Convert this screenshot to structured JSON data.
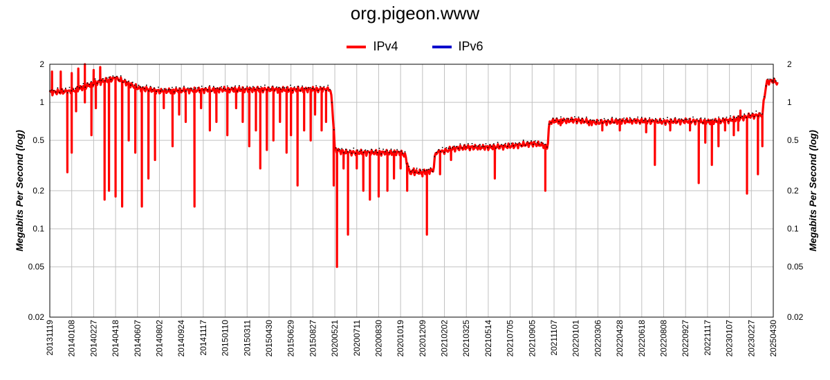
{
  "colors": {
    "ipv4": "#ff0000",
    "ipv6": "#0000cc",
    "grid": "#c0c0c0",
    "dots": "#000000"
  },
  "chart_data": {
    "type": "line",
    "title": "org.pigeon.www",
    "ylabel": "Megabits Per Second (log)",
    "yscale": "log",
    "ylim": [
      0.02,
      2
    ],
    "grid": true,
    "legend_position": "top-center",
    "yticks": [
      "2",
      "1",
      "0.5",
      "0.2",
      "0.1",
      "0.05",
      "0.02"
    ],
    "xtick_labels": [
      "20131119",
      "20140108",
      "20140227",
      "20140418",
      "20140607",
      "20140802",
      "20140924",
      "20141117",
      "20150110",
      "20150311",
      "20150430",
      "20150629",
      "20150827",
      "20200521",
      "20200711",
      "20200830",
      "20201019",
      "20201209",
      "20210202",
      "20210325",
      "20210514",
      "20210705",
      "20210905",
      "20211107",
      "20220101",
      "20220306",
      "20220428",
      "20220618",
      "20220808",
      "20220927",
      "20221117",
      "20230107",
      "20230227",
      "20250430"
    ],
    "series": [
      {
        "name": "IPv4",
        "color": "#ff0000",
        "base": [
          [
            0,
            1.2
          ],
          [
            1,
            1.22
          ],
          [
            2,
            1.4
          ],
          [
            3,
            1.55
          ],
          [
            4,
            1.3
          ],
          [
            5,
            1.22
          ],
          [
            6,
            1.24
          ],
          [
            7,
            1.25
          ],
          [
            8,
            1.26
          ],
          [
            9,
            1.26
          ],
          [
            10,
            1.26
          ],
          [
            11,
            1.26
          ],
          [
            12,
            1.26
          ],
          [
            12.8,
            1.26
          ],
          [
            13,
            0.42
          ],
          [
            13.5,
            0.4
          ],
          [
            14,
            0.4
          ],
          [
            15,
            0.4
          ],
          [
            16,
            0.4
          ],
          [
            16.2,
            0.38
          ],
          [
            16.4,
            0.28
          ],
          [
            17,
            0.28
          ],
          [
            17.5,
            0.29
          ],
          [
            17.6,
            0.4
          ],
          [
            18,
            0.41
          ],
          [
            18.4,
            0.43
          ],
          [
            19,
            0.44
          ],
          [
            20,
            0.44
          ],
          [
            21,
            0.45
          ],
          [
            22,
            0.47
          ],
          [
            22.5,
            0.46
          ],
          [
            22.7,
            0.44
          ],
          [
            22.8,
            0.7
          ],
          [
            23,
            0.71
          ],
          [
            24,
            0.72
          ],
          [
            25,
            0.69
          ],
          [
            26,
            0.71
          ],
          [
            27,
            0.71
          ],
          [
            28,
            0.7
          ],
          [
            29,
            0.71
          ],
          [
            30,
            0.7
          ],
          [
            31,
            0.72
          ],
          [
            31.5,
            0.75
          ],
          [
            32,
            0.78
          ],
          [
            32.5,
            0.79
          ],
          [
            32.7,
            1.45
          ],
          [
            33,
            1.48
          ],
          [
            33.2,
            1.42
          ]
        ],
        "dips": [
          [
            0.8,
            0.28
          ],
          [
            1.0,
            0.4
          ],
          [
            1.2,
            0.85
          ],
          [
            1.6,
            1.0
          ],
          [
            1.9,
            0.55
          ],
          [
            2.1,
            0.9
          ],
          [
            2.5,
            0.17
          ],
          [
            2.7,
            0.2
          ],
          [
            3.0,
            0.18
          ],
          [
            3.3,
            0.15
          ],
          [
            3.6,
            0.5
          ],
          [
            3.9,
            0.4
          ],
          [
            4.2,
            0.15
          ],
          [
            4.5,
            0.25
          ],
          [
            4.8,
            0.35
          ],
          [
            5.2,
            0.9
          ],
          [
            5.6,
            0.45
          ],
          [
            5.9,
            0.8
          ],
          [
            6.2,
            0.7
          ],
          [
            6.6,
            0.15
          ],
          [
            6.9,
            0.9
          ],
          [
            7.3,
            0.6
          ],
          [
            7.6,
            0.7
          ],
          [
            8.1,
            0.55
          ],
          [
            8.5,
            0.9
          ],
          [
            8.8,
            0.7
          ],
          [
            9.1,
            0.45
          ],
          [
            9.4,
            0.6
          ],
          [
            9.6,
            0.3
          ],
          [
            9.9,
            0.42
          ],
          [
            10.2,
            0.5
          ],
          [
            10.5,
            0.7
          ],
          [
            10.8,
            0.4
          ],
          [
            11.0,
            0.55
          ],
          [
            11.3,
            0.22
          ],
          [
            11.6,
            0.6
          ],
          [
            11.9,
            0.5
          ],
          [
            12.1,
            0.8
          ],
          [
            12.4,
            0.6
          ],
          [
            12.6,
            0.7
          ],
          [
            12.95,
            0.22
          ],
          [
            13.1,
            0.05
          ],
          [
            13.4,
            0.3
          ],
          [
            13.6,
            0.09
          ],
          [
            14.0,
            0.3
          ],
          [
            14.3,
            0.2
          ],
          [
            14.6,
            0.17
          ],
          [
            15.0,
            0.18
          ],
          [
            15.4,
            0.2
          ],
          [
            15.7,
            0.25
          ],
          [
            16.0,
            0.3
          ],
          [
            16.3,
            0.2
          ],
          [
            16.6,
            0.3
          ],
          [
            17.0,
            0.26
          ],
          [
            17.2,
            0.09
          ],
          [
            17.8,
            0.27
          ],
          [
            18.3,
            0.35
          ],
          [
            20.3,
            0.25
          ],
          [
            22.6,
            0.2
          ],
          [
            23.3,
            0.66
          ],
          [
            24.6,
            0.66
          ],
          [
            25.2,
            0.6
          ],
          [
            26.0,
            0.6
          ],
          [
            27.2,
            0.58
          ],
          [
            27.6,
            0.32
          ],
          [
            28.3,
            0.6
          ],
          [
            29.2,
            0.6
          ],
          [
            29.6,
            0.23
          ],
          [
            29.9,
            0.48
          ],
          [
            30.2,
            0.32
          ],
          [
            30.5,
            0.45
          ],
          [
            30.8,
            0.6
          ],
          [
            31.2,
            0.55
          ],
          [
            31.4,
            0.6
          ],
          [
            31.8,
            0.19
          ],
          [
            32.3,
            0.27
          ],
          [
            32.5,
            0.45
          ]
        ],
        "spikes": [
          [
            0.1,
            1.75
          ],
          [
            0.5,
            1.75
          ],
          [
            1.0,
            1.7
          ],
          [
            1.3,
            1.85
          ],
          [
            1.6,
            2.0
          ],
          [
            2.0,
            1.8
          ],
          [
            2.3,
            1.9
          ],
          [
            31.5,
            0.86
          ]
        ]
      },
      {
        "name": "IPv6",
        "color": "#0000cc",
        "base": [],
        "dips": [],
        "spikes": []
      }
    ]
  }
}
